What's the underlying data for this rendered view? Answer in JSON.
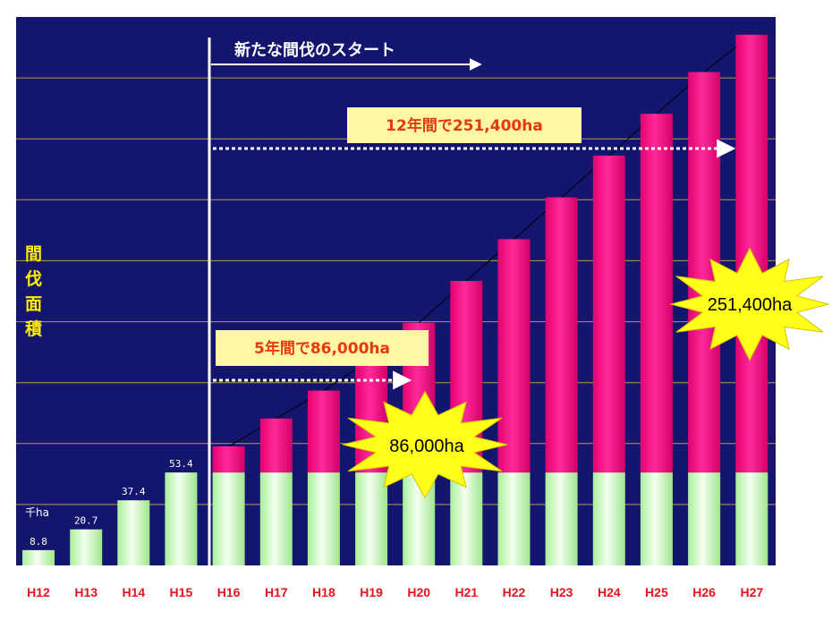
{
  "chart_data": {
    "type": "bar",
    "categories": [
      "H12",
      "H13",
      "H14",
      "H15",
      "H16",
      "H17",
      "H18",
      "H19",
      "H20",
      "H21",
      "H22",
      "H23",
      "H24",
      "H25",
      "H26",
      "H27"
    ],
    "series": [
      {
        "values": [
          8.8,
          20.7,
          37.4,
          53.4,
          53.4,
          53.4,
          53.4,
          53.4,
          53.4,
          53.4,
          53.4,
          53.4,
          53.4,
          53.4,
          53.4,
          53.4
        ]
      },
      {
        "values": [
          0,
          0,
          0,
          0,
          15,
          31,
          47,
          65,
          86,
          110,
          134,
          158,
          182,
          206,
          230,
          251.4
        ]
      }
    ],
    "data_labels": [
      "8.8",
      "20.7",
      "37.4",
      "53.4"
    ],
    "unit_label": "千ha",
    "ylabel": "間伐面積",
    "ylim": [
      0,
      315
    ],
    "grid": true,
    "annotations": {
      "start_arrow": "新たな間伐のスタート",
      "banner_12yr": "12年間で251,400ha",
      "banner_5yr": "5年間で86,000ha",
      "burst_h20": "86,000ha",
      "burst_h27": "251,400ha"
    },
    "colors": {
      "background": "#14156e",
      "gridline": "#b89a4a",
      "base_bar": "#c8f7bc",
      "added_bar": "#ff0a8c",
      "banner": "#fff6a6",
      "burst": "#ffff1a",
      "xlabel": "#e4141c"
    }
  }
}
